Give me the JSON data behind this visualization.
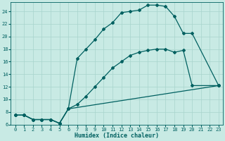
{
  "xlabel": "Humidex (Indice chaleur)",
  "bg_color": "#c8eae4",
  "grid_color": "#a8d4cc",
  "line_color": "#006060",
  "xlim": [
    -0.5,
    23.5
  ],
  "ylim": [
    6,
    25.5
  ],
  "xticks": [
    0,
    1,
    2,
    3,
    4,
    5,
    6,
    7,
    8,
    9,
    10,
    11,
    12,
    13,
    14,
    15,
    16,
    17,
    18,
    19,
    20,
    21,
    22,
    23
  ],
  "yticks": [
    6,
    8,
    10,
    12,
    14,
    16,
    18,
    20,
    22,
    24
  ],
  "line3_x": [
    0,
    1,
    2,
    3,
    4,
    5,
    6,
    7,
    8,
    9,
    10,
    11,
    12,
    13,
    14,
    15,
    16,
    17,
    18,
    19,
    20,
    23
  ],
  "line3_y": [
    7.5,
    7.5,
    6.8,
    6.8,
    6.8,
    6.2,
    8.5,
    16.5,
    18.0,
    19.5,
    21.2,
    22.2,
    23.8,
    24.0,
    24.2,
    25.0,
    25.0,
    24.8,
    23.2,
    20.5,
    20.5,
    12.2
  ],
  "line2_x": [
    0,
    1,
    2,
    3,
    4,
    5,
    6,
    7,
    8,
    9,
    10,
    11,
    12,
    13,
    14,
    15,
    16,
    17,
    18,
    19,
    20,
    23
  ],
  "line2_y": [
    7.5,
    7.5,
    6.8,
    6.8,
    6.8,
    6.2,
    8.5,
    9.2,
    10.5,
    12.0,
    13.5,
    15.0,
    16.0,
    17.0,
    17.5,
    17.8,
    18.0,
    18.0,
    17.5,
    17.8,
    12.2,
    12.2
  ],
  "line1_x": [
    0,
    1,
    2,
    3,
    4,
    5,
    6,
    23
  ],
  "line1_y": [
    7.5,
    7.5,
    6.8,
    6.8,
    6.8,
    6.2,
    8.5,
    12.2
  ]
}
